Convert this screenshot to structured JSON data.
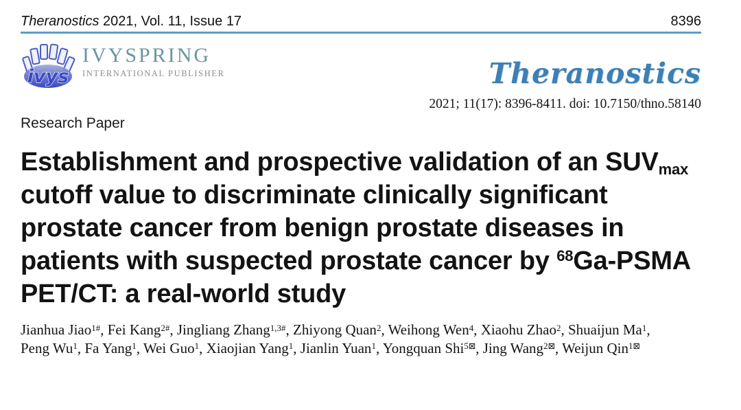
{
  "masthead": {
    "journal_name": "Theranostics",
    "issue_text": " 2021, Vol. 11, Issue 17",
    "page_number": "8396"
  },
  "publisher": {
    "logo_monogram": "ivys",
    "name": "IVYSPRING",
    "tagline": "INTERNATIONAL PUBLISHER"
  },
  "journal_logo": {
    "text": "Theranostics"
  },
  "citation": "2021; 11(17): 8396-8411. doi: 10.7150/thno.58140",
  "article_type": "Research Paper",
  "title": {
    "part1": "Establishment and prospective validation of an SUV",
    "subscript": "max",
    "part2": " cutoff value to discriminate clinically significant prostate cancer from benign prostate diseases in patients with suspected prostate cancer by ",
    "superscript": "68",
    "part3": "Ga-PSMA PET/CT: a real-world study"
  },
  "authors": [
    {
      "name": "Jianhua Jiao",
      "sup": "1#"
    },
    {
      "name": "Fei Kang",
      "sup": "2#"
    },
    {
      "name": "Jingliang Zhang",
      "sup": "1,3#"
    },
    {
      "name": "Zhiyong Quan",
      "sup": "2"
    },
    {
      "name": "Weihong Wen",
      "sup": "4"
    },
    {
      "name": "Xiaohu Zhao",
      "sup": "2"
    },
    {
      "name": "Shuaijun Ma",
      "sup": "1"
    },
    {
      "name": "Peng Wu",
      "sup": "1"
    },
    {
      "name": "Fa Yang",
      "sup": "1"
    },
    {
      "name": "Wei Guo",
      "sup": "1"
    },
    {
      "name": "Xiaojian Yang",
      "sup": "1"
    },
    {
      "name": "Jianlin Yuan",
      "sup": "1"
    },
    {
      "name": "Yongquan Shi",
      "sup": "5",
      "corresponding": true
    },
    {
      "name": "Jing Wang",
      "sup": "2",
      "corresponding": true
    },
    {
      "name": "Weijun Qin",
      "sup": "1",
      "corresponding": true
    }
  ],
  "icons": {
    "corresponding_glyph": "⊠",
    "publisher_logo": "ivyspring-ring-logo"
  },
  "colors": {
    "rule_blue": "#5b9ec6",
    "logo_blue": "#3c80b5",
    "publisher_teal": "#6a94a3",
    "publisher_grey": "#8c8c8c"
  }
}
